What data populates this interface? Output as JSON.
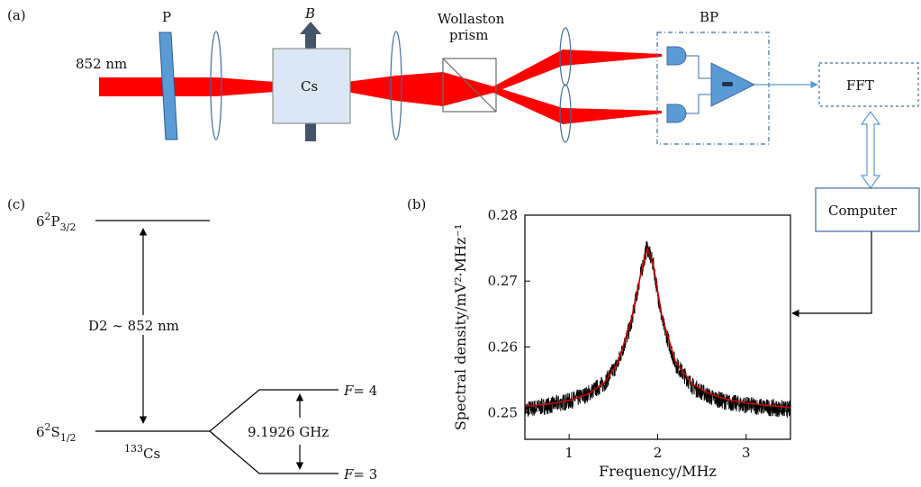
{
  "panel_a": {
    "tag": "(a)",
    "wavelength": "852 nm",
    "polarizer": "P",
    "field": "B",
    "cell": "Cs",
    "prism_line1": "Wollaston",
    "prism_line2": "prism",
    "detector": "BP",
    "fft": "FFT",
    "computer": "Computer"
  },
  "panel_c": {
    "tag": "(c)",
    "upper_state": {
      "base": "6",
      "sup": "2",
      "mid": "P",
      "sub": "3/2"
    },
    "lower_state": {
      "base": "6",
      "sup": "2",
      "mid": "S",
      "sub": "1/2"
    },
    "transition": "D2 ∼ 852 nm",
    "isotope": {
      "sup": "133",
      "base": "Cs"
    },
    "splitting": "9.1926 GHz",
    "level_upper": {
      "var": "F",
      "val": "= 4"
    },
    "level_lower": {
      "var": "F",
      "val": "= 3"
    }
  },
  "panel_b": {
    "tag": "(b)"
  },
  "colors": {
    "beam": "#ff0000",
    "optic_blue": "#5b9bd5",
    "cell_fill": "#dbe7f4",
    "fit": "#cc0000"
  },
  "chart_data": {
    "type": "line",
    "xlabel": "Frequency/MHz",
    "ylabel": "Spectral density/mV²·MHz⁻¹",
    "xlim": [
      0.5,
      3.5
    ],
    "ylim": [
      0.246,
      0.28
    ],
    "xticks": [
      1,
      2,
      3
    ],
    "yticks": [
      0.25,
      0.26,
      0.27,
      0.28
    ],
    "xtick_labels": [
      "1",
      "2",
      "3"
    ],
    "ytick_labels": [
      "0.25",
      "0.26",
      "0.27",
      "0.28"
    ],
    "grid": false,
    "series": [
      {
        "style": "noisy-measurement",
        "color": "#000000",
        "x": [
          0.5,
          0.8,
          1.0,
          1.2,
          1.4,
          1.55,
          1.7,
          1.8,
          1.88,
          1.95,
          2.05,
          2.2,
          2.4,
          2.6,
          2.8,
          3.0,
          3.2,
          3.5
        ],
        "y": [
          0.2505,
          0.2512,
          0.2518,
          0.2528,
          0.2545,
          0.2575,
          0.2635,
          0.2705,
          0.2752,
          0.2725,
          0.264,
          0.2575,
          0.254,
          0.2524,
          0.2516,
          0.2512,
          0.2509,
          0.2505
        ]
      },
      {
        "style": "lorentzian-fit",
        "color": "#cc0000",
        "x": [
          0.5,
          0.8,
          1.0,
          1.2,
          1.4,
          1.55,
          1.7,
          1.8,
          1.88,
          1.95,
          2.05,
          2.2,
          2.4,
          2.6,
          2.8,
          3.0,
          3.2,
          3.5
        ],
        "y": [
          0.251,
          0.2514,
          0.2519,
          0.2528,
          0.2546,
          0.2576,
          0.264,
          0.2705,
          0.275,
          0.2725,
          0.2645,
          0.2578,
          0.2543,
          0.2528,
          0.252,
          0.2515,
          0.2512,
          0.2508
        ]
      }
    ]
  }
}
